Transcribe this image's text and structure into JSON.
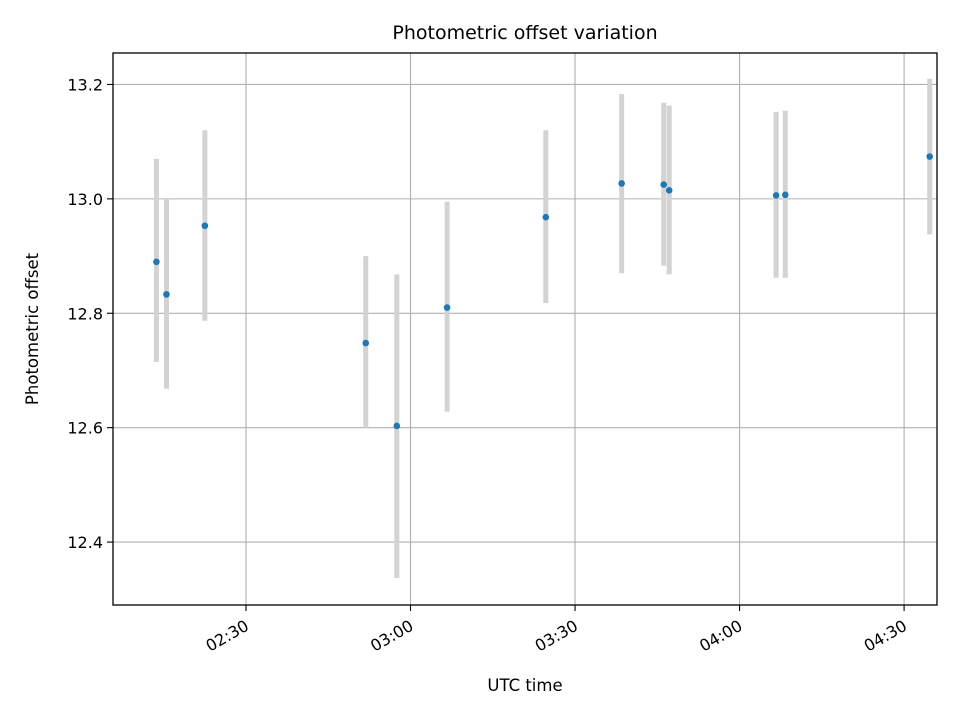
{
  "chart_data": {
    "type": "scatter",
    "title": "Photometric offset variation",
    "xlabel": "UTC time",
    "ylabel": "Photometric offset",
    "xlim": [
      "02:05:45",
      "04:36:00"
    ],
    "ylim": [
      12.29,
      13.255
    ],
    "x_ticks": [
      "02:30",
      "03:00",
      "03:30",
      "04:00",
      "04:30"
    ],
    "y_ticks": [
      12.4,
      12.6,
      12.8,
      13.0,
      13.2
    ],
    "y_tick_labels": [
      "12.4",
      "12.6",
      "12.8",
      "13.0",
      "13.2"
    ],
    "grid": true,
    "points": [
      {
        "x": "02:13:40",
        "y": 12.89,
        "y_low": 12.715,
        "y_high": 13.07
      },
      {
        "x": "02:15:30",
        "y": 12.833,
        "y_low": 12.668,
        "y_high": 13.0
      },
      {
        "x": "02:22:30",
        "y": 12.953,
        "y_low": 12.787,
        "y_high": 13.12
      },
      {
        "x": "02:51:50",
        "y": 12.748,
        "y_low": 12.6,
        "y_high": 12.9
      },
      {
        "x": "02:57:30",
        "y": 12.603,
        "y_low": 12.337,
        "y_high": 12.868
      },
      {
        "x": "03:06:40",
        "y": 12.81,
        "y_low": 12.628,
        "y_high": 12.995
      },
      {
        "x": "03:24:40",
        "y": 12.968,
        "y_low": 12.818,
        "y_high": 13.12
      },
      {
        "x": "03:38:30",
        "y": 13.027,
        "y_low": 12.87,
        "y_high": 13.183
      },
      {
        "x": "03:46:10",
        "y": 13.025,
        "y_low": 12.883,
        "y_high": 13.168
      },
      {
        "x": "03:47:10",
        "y": 13.015,
        "y_low": 12.868,
        "y_high": 13.163
      },
      {
        "x": "04:06:40",
        "y": 13.006,
        "y_low": 12.862,
        "y_high": 13.152
      },
      {
        "x": "04:08:20",
        "y": 13.007,
        "y_low": 12.862,
        "y_high": 13.154
      },
      {
        "x": "04:34:40",
        "y": 13.074,
        "y_low": 12.938,
        "y_high": 13.21
      }
    ],
    "colors": {
      "point": "#1f77b4",
      "errorbar": "#d3d3d3",
      "grid": "#b0b0b0",
      "axes": "#000000"
    }
  }
}
